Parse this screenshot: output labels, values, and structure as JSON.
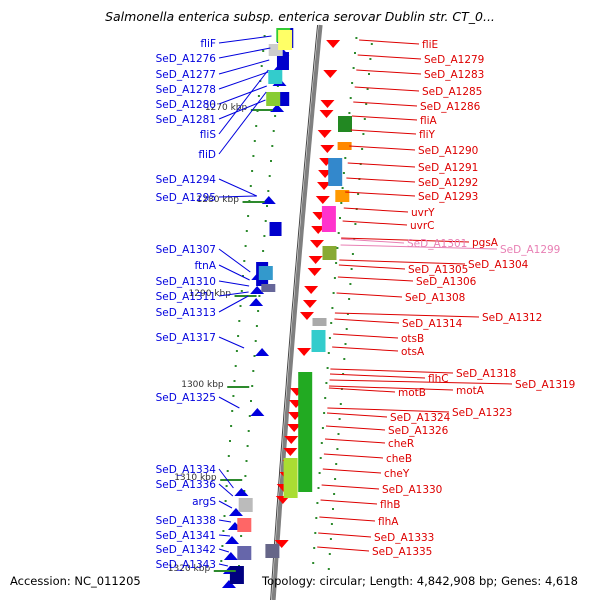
{
  "title": "Salmonella enterica subsp. enterica serovar Dublin str. CT_0...",
  "footer": {
    "accession": "Accession: NC_011205",
    "summary": "Topology: circular; Length: 4,842,908 bp; Genes: 4,618"
  },
  "colors": {
    "forward_strand": "#0000dd",
    "reverse_strand": "#dd0000",
    "highlight_label": "#e87fb4",
    "kbp_tick": "#2d8a2d",
    "backbone": "#808080"
  },
  "kbp_ticks": [
    "1270 kbp",
    "1280 kbp",
    "1290 kbp",
    "1300 kbp",
    "1310 kbp",
    "1320 kbp"
  ],
  "left_labels": [
    "fliF",
    "SeD_A1276",
    "SeD_A1277",
    "SeD_A1278",
    "SeD_A1280",
    "SeD_A1281",
    "fliS",
    "fliD",
    "SeD_A1294",
    "SeD_A1295",
    "SeD_A1307",
    "ftnA",
    "SeD_A1310",
    "SeD_A1311",
    "SeD_A1313",
    "SeD_A1317",
    "SeD_A1325",
    "SeD_A1334",
    "SeD_A1336",
    "argS",
    "SeD_A1338",
    "SeD_A1341",
    "SeD_A1342",
    "SeD_A1343"
  ],
  "right_labels": [
    "fliE",
    "SeD_A1279",
    "SeD_A1283",
    "SeD_A1285",
    "SeD_A1286",
    "fliA",
    "fliY",
    "SeD_A1290",
    "SeD_A1291",
    "SeD_A1292",
    "SeD_A1293",
    "uvrY",
    "uvrC",
    "SeD_A1301",
    "pgsA",
    "SeD_A1299",
    "SeD_A1304",
    "SeD_A1305",
    "SeD_A1306",
    "SeD_A1308",
    "SeD_A1312",
    "SeD_A1314",
    "otsB",
    "otsA",
    "SeD_A1318",
    "flhC",
    "SeD_A1319",
    "motA",
    "motB",
    "SeD_A1323",
    "SeD_A1324",
    "SeD_A1326",
    "cheR",
    "cheB",
    "cheY",
    "SeD_A1330",
    "flhB",
    "flhA",
    "SeD_A1333",
    "SeD_A1335"
  ]
}
